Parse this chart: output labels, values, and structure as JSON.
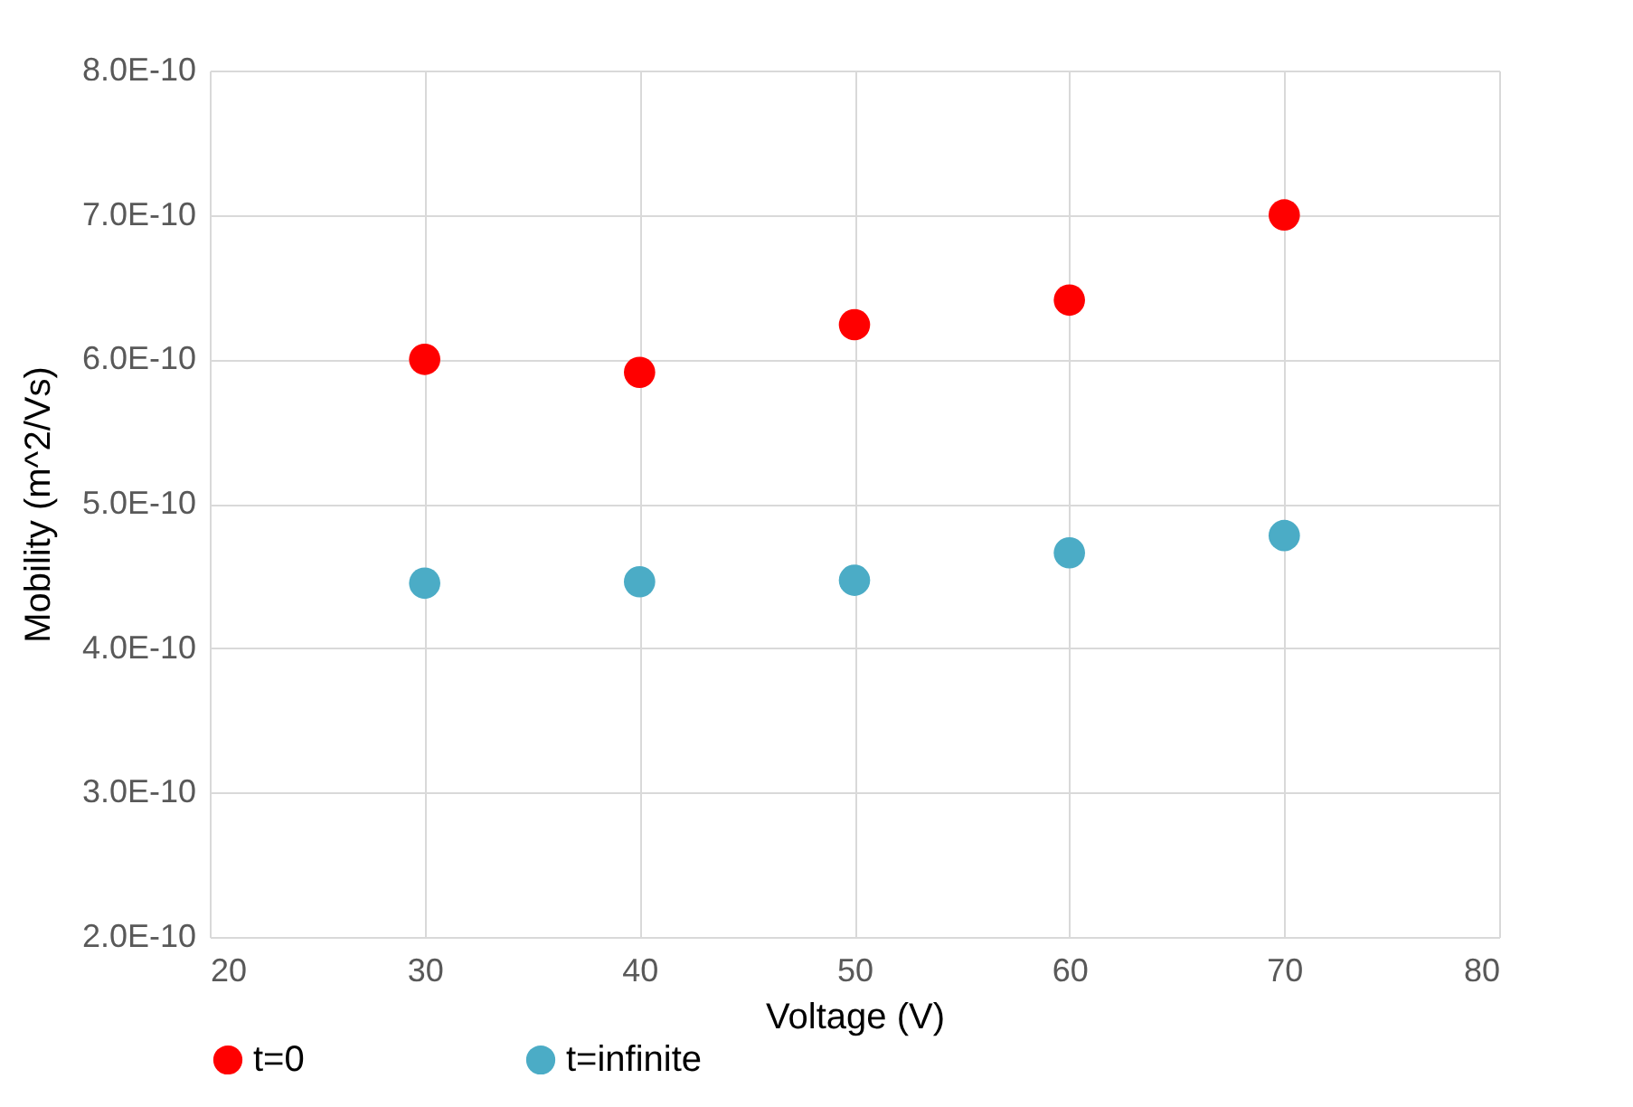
{
  "chart_data": {
    "type": "scatter",
    "xlabel": "Voltage (V)",
    "ylabel": "Mobility (m^2/Vs)",
    "x": [
      30,
      40,
      50,
      60,
      70
    ],
    "series": [
      {
        "name": "t=0",
        "color": "#ff0000",
        "values": [
          6e-10,
          5.91e-10,
          6.24e-10,
          6.41e-10,
          7e-10
        ]
      },
      {
        "name": "t=infinite",
        "color": "#4bacc6",
        "values": [
          4.45e-10,
          4.46e-10,
          4.47e-10,
          4.66e-10,
          4.78e-10
        ]
      }
    ],
    "xlim": [
      20,
      80
    ],
    "xticks": [
      20,
      30,
      40,
      50,
      60,
      70,
      80
    ],
    "ylim": [
      2e-10,
      8e-10
    ],
    "yticks": [
      {
        "value": 2e-10,
        "label": "2.0E-10"
      },
      {
        "value": 3e-10,
        "label": "3.0E-10"
      },
      {
        "value": 4e-10,
        "label": "4.0E-10"
      },
      {
        "value": 5e-10,
        "label": "5.0E-10"
      },
      {
        "value": 6e-10,
        "label": "6.0E-10"
      },
      {
        "value": 7e-10,
        "label": "7.0E-10"
      },
      {
        "value": 8e-10,
        "label": "8.0E-10"
      }
    ],
    "grid": true,
    "legend": "bottom",
    "marker": "circle"
  }
}
